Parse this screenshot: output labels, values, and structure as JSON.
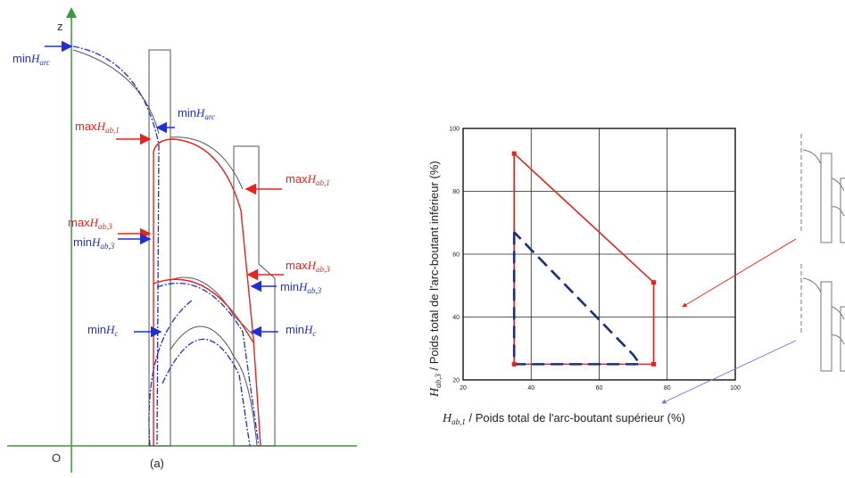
{
  "colors": {
    "red": "#e8221c",
    "blue": "#1f2fd8",
    "green": "#3a9a3a",
    "navy": "#1c2a8a",
    "gray": "#555555"
  },
  "diagram_a": {
    "axis_z": "z",
    "axis_origin": "O",
    "caption": "(a)",
    "labels": {
      "min_harc_left": {
        "pre": "min",
        "var": "H",
        "sub": "arc"
      },
      "min_harc_mid": {
        "pre": "min",
        "var": "H",
        "sub": "arc"
      },
      "max_hab1_left": {
        "pre": "max",
        "var": "H",
        "sub": "ab,1"
      },
      "max_hab1_right": {
        "pre": "max",
        "var": "H",
        "sub": "ab,1"
      },
      "max_hab3_left": {
        "pre": "max",
        "var": "H",
        "sub": "ab,3"
      },
      "min_hab3_left": {
        "pre": "min",
        "var": "H",
        "sub": "ab,3"
      },
      "max_hab3_right": {
        "pre": "max",
        "var": "H",
        "sub": "ab,3"
      },
      "min_hab3_right": {
        "pre": "min",
        "var": "H",
        "sub": "ab,3"
      },
      "min_hc_left": {
        "pre": "min",
        "var": "H",
        "sub": "c"
      },
      "min_hc_right": {
        "pre": "min",
        "var": "H",
        "sub": "c"
      }
    }
  },
  "chart_data": {
    "type": "line",
    "xlabel_var": "H",
    "xlabel_sub": "ab,1",
    "xlabel_text": " / Poids total de l'arc-boutant supérieur (%)",
    "ylabel_var": "H",
    "ylabel_sub": "ab,3",
    "ylabel_text": " / Poids total de l'arc-boutant inférieur (%)",
    "xlim": [
      20,
      100
    ],
    "ylim": [
      20,
      100
    ],
    "xticks": [
      "20",
      "40",
      "60",
      "80",
      "100"
    ],
    "yticks": [
      "20",
      "40",
      "60",
      "80",
      "100"
    ],
    "grid": true,
    "series": [
      {
        "color": "#e8221c",
        "style": "solid",
        "points": [
          [
            35,
            92
          ],
          [
            35,
            25
          ],
          [
            76,
            25
          ],
          [
            76,
            51
          ],
          [
            35,
            92
          ]
        ]
      },
      {
        "color": "#1c2a8a",
        "style": "dashed",
        "points": [
          [
            35,
            67
          ],
          [
            35,
            25
          ],
          [
            72,
            25
          ],
          [
            70,
            28
          ],
          [
            35,
            67
          ]
        ]
      }
    ]
  }
}
